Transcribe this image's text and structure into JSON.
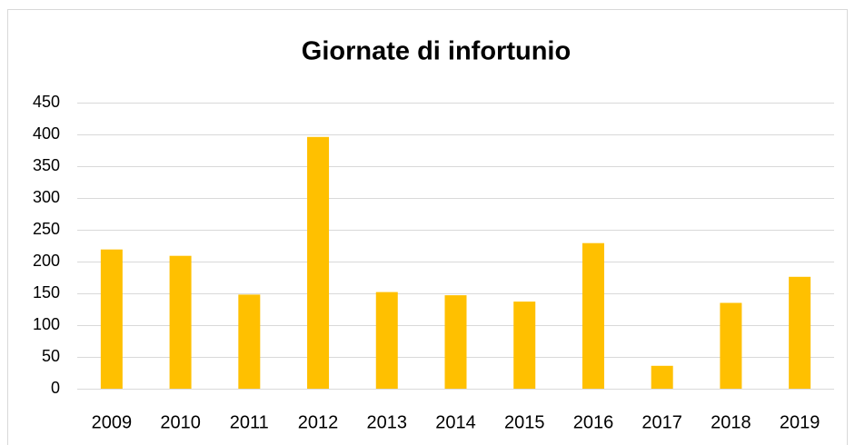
{
  "chart_data": {
    "type": "bar",
    "title": "Giornate di infortunio",
    "categories": [
      "2009",
      "2010",
      "2011",
      "2012",
      "2013",
      "2014",
      "2015",
      "2016",
      "2017",
      "2018",
      "2019"
    ],
    "values": [
      219,
      209,
      148,
      396,
      152,
      147,
      137,
      229,
      36,
      135,
      176
    ],
    "color": "#ffc000",
    "ylim": [
      0,
      450
    ],
    "yticks": [
      0,
      50,
      100,
      150,
      200,
      250,
      300,
      350,
      400,
      450
    ],
    "grid": true
  }
}
